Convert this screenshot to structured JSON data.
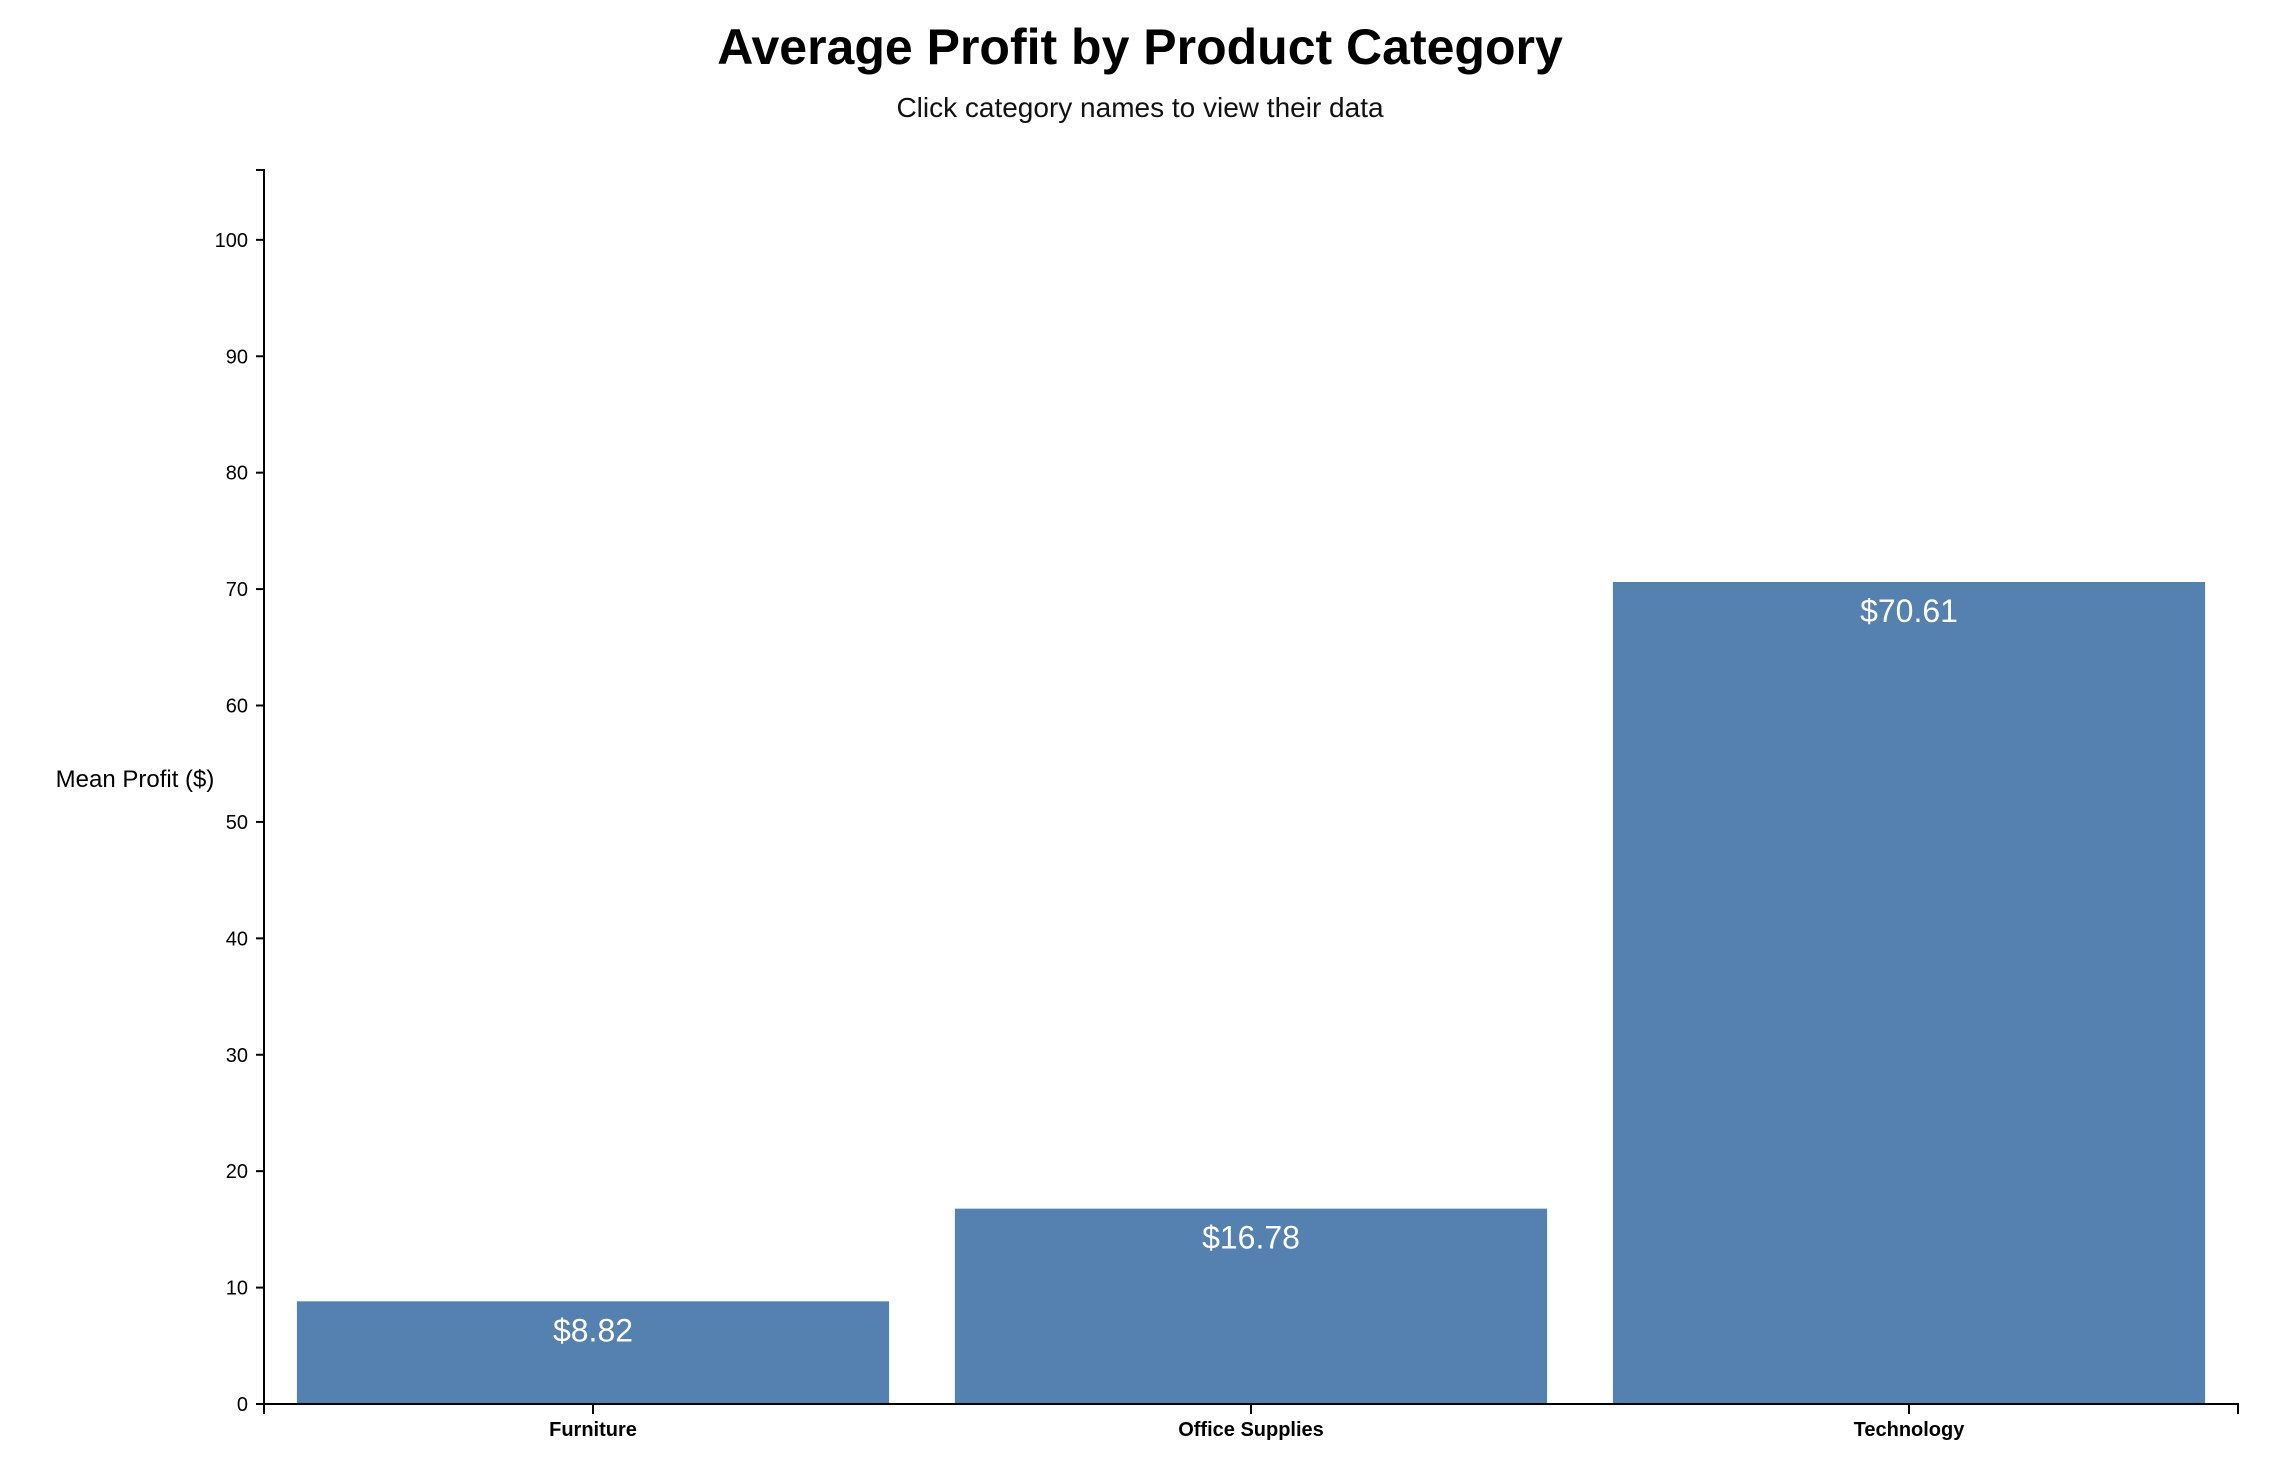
{
  "chart_data": {
    "type": "bar",
    "title": "Average Profit by Product Category",
    "subtitle": "Click category names to view their data",
    "categories": [
      "Furniture",
      "Office Supplies",
      "Technology"
    ],
    "values": [
      8.82,
      16.78,
      70.61
    ],
    "value_labels": [
      "$8.82",
      "$16.78",
      "$70.61"
    ],
    "ylabel": "Mean Profit ($)",
    "xlabel": "",
    "ylim": [
      0,
      106
    ],
    "yticks": [
      0,
      10,
      20,
      30,
      40,
      50,
      60,
      70,
      80,
      90,
      100
    ],
    "grid": false,
    "bar_color": "#5581b0",
    "label_color": "#ffffff"
  }
}
